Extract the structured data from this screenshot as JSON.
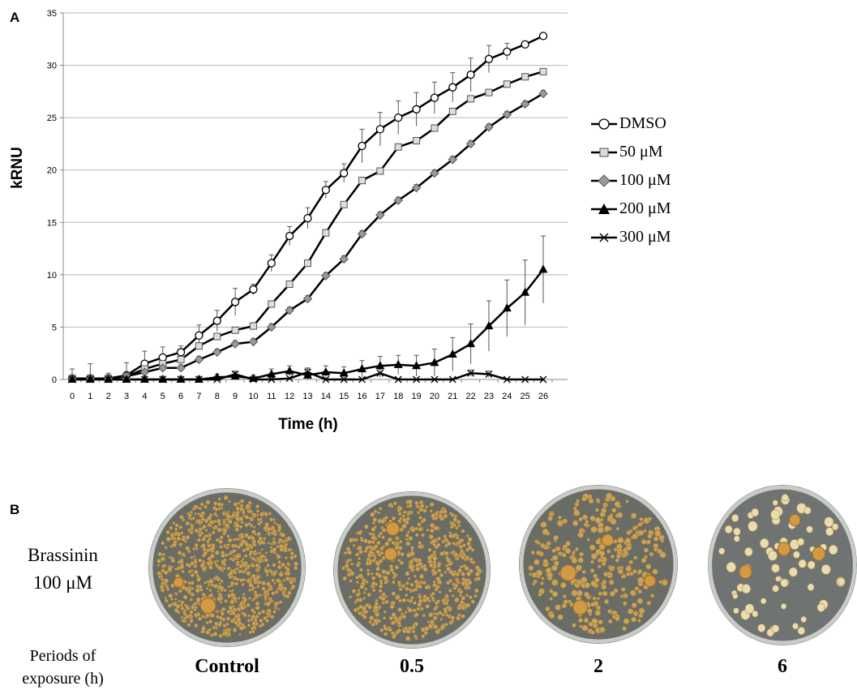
{
  "panel_a_label": "A",
  "panel_b_label": "B",
  "chart_data": {
    "type": "line",
    "title": "",
    "xlabel": "Time (h)",
    "ylabel": "kRNU",
    "x": [
      0,
      1,
      2,
      3,
      4,
      5,
      6,
      7,
      8,
      9,
      10,
      11,
      12,
      13,
      14,
      15,
      16,
      17,
      18,
      19,
      20,
      21,
      22,
      23,
      24,
      25,
      26
    ],
    "xlim": [
      0,
      26
    ],
    "ylim": [
      0,
      35
    ],
    "yticks": [
      0,
      5,
      10,
      15,
      20,
      25,
      30,
      35
    ],
    "grid": "horizontal",
    "legend_position": "right",
    "series": [
      {
        "name": "DMSO",
        "marker": "open-circle",
        "values": [
          0.1,
          0.1,
          0.1,
          0.4,
          1.5,
          2.1,
          2.6,
          4.2,
          5.6,
          7.4,
          8.6,
          11.1,
          13.7,
          15.4,
          18.1,
          19.7,
          22.3,
          23.9,
          25.0,
          25.8,
          26.9,
          27.9,
          29.1,
          30.6,
          31.3,
          32.0,
          32.8
        ],
        "errors": [
          0.9,
          1.4,
          0.5,
          1.2,
          1.2,
          1.0,
          0.6,
          1.0,
          1.0,
          1.3,
          0.5,
          0.8,
          0.9,
          1.0,
          0.8,
          0.9,
          1.6,
          1.6,
          1.6,
          1.6,
          1.5,
          1.4,
          1.6,
          1.3,
          0.8,
          0.3,
          0.2
        ]
      },
      {
        "name": "50 μM",
        "marker": "square",
        "values": [
          0.1,
          0.1,
          0.1,
          0.3,
          1.0,
          1.5,
          1.9,
          3.2,
          4.1,
          4.7,
          5.1,
          7.2,
          9.1,
          11.1,
          14.0,
          16.7,
          19.0,
          19.9,
          22.2,
          22.8,
          24.0,
          25.6,
          26.8,
          27.4,
          28.2,
          28.9,
          29.4
        ],
        "errors": [
          0.3,
          0.3,
          0.3,
          0.3,
          0.3,
          0.3,
          0.3,
          0.3,
          0.3,
          0.3,
          0.3,
          0.3,
          0.3,
          0.3,
          0.3,
          0.3,
          0.3,
          0.3,
          0.3,
          0.3,
          0.3,
          0.3,
          0.3,
          0.3,
          0.3,
          0.3,
          0.3
        ]
      },
      {
        "name": "100 μM",
        "marker": "diamond",
        "values": [
          0.1,
          0.1,
          0.1,
          0.3,
          0.7,
          1.1,
          1.1,
          1.9,
          2.6,
          3.4,
          3.6,
          5.0,
          6.6,
          7.7,
          9.9,
          11.5,
          13.9,
          15.7,
          17.1,
          18.3,
          19.7,
          21.0,
          22.5,
          24.1,
          25.3,
          26.3,
          27.3
        ],
        "errors": [
          0.3,
          0.3,
          0.3,
          0.3,
          0.3,
          0.3,
          0.3,
          0.3,
          0.3,
          0.3,
          0.3,
          0.3,
          0.3,
          0.3,
          0.3,
          0.3,
          0.3,
          0.3,
          0.3,
          0.3,
          0.3,
          0.3,
          0.3,
          0.3,
          0.3,
          0.3,
          0.3
        ]
      },
      {
        "name": "200 μM",
        "marker": "filled-triangle",
        "values": [
          0.0,
          0.0,
          0.0,
          0.0,
          0.0,
          0.0,
          0.0,
          0.0,
          0.2,
          0.3,
          0.1,
          0.5,
          0.8,
          0.4,
          0.7,
          0.6,
          1.0,
          1.3,
          1.4,
          1.3,
          1.6,
          2.4,
          3.4,
          5.1,
          6.8,
          8.3,
          10.5
        ],
        "errors": [
          0.3,
          0.3,
          0.3,
          0.3,
          0.3,
          0.3,
          0.3,
          0.3,
          0.3,
          0.4,
          0.3,
          0.5,
          0.5,
          0.6,
          0.6,
          0.6,
          0.8,
          0.9,
          0.9,
          1.0,
          1.3,
          1.6,
          1.9,
          2.4,
          2.7,
          3.1,
          3.2
        ]
      },
      {
        "name": "300 μM",
        "marker": "cross",
        "values": [
          0.0,
          0.0,
          0.0,
          0.0,
          0.0,
          0.0,
          0.0,
          0.0,
          0.0,
          0.5,
          0.0,
          0.0,
          0.1,
          0.7,
          0.0,
          0.0,
          0.0,
          0.6,
          0.0,
          0.0,
          0.0,
          0.0,
          0.6,
          0.5,
          0.0,
          0.0,
          0.0
        ],
        "errors": [
          0.0,
          0.0,
          0.0,
          0.0,
          0.0,
          0.0,
          0.0,
          0.0,
          0.0,
          0.3,
          0.0,
          0.0,
          0.1,
          0.4,
          0.0,
          0.0,
          0.0,
          0.4,
          0.0,
          0.0,
          0.0,
          0.0,
          0.3,
          0.3,
          0.0,
          0.0,
          0.0
        ]
      }
    ]
  },
  "panel_b": {
    "treatment_line1": "Brassinin",
    "treatment_line2": "100 μM",
    "periods_label_line1": "Periods of",
    "periods_label_line2": "exposure (h)",
    "periods": [
      "Control",
      "0.5",
      "2",
      "6"
    ]
  }
}
